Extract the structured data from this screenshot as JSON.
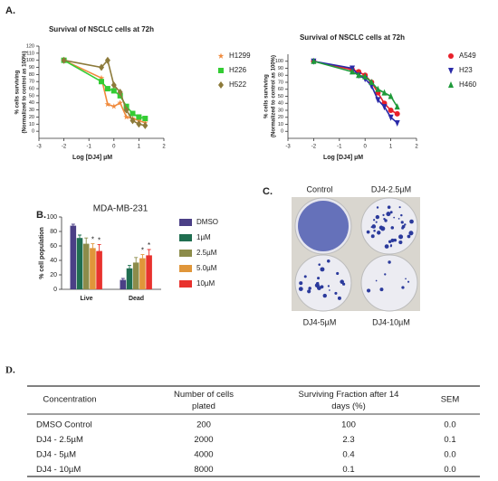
{
  "panel_labels": [
    "A.",
    "B.",
    "C.",
    "D."
  ],
  "chart_data": [
    {
      "type": "line",
      "title": "Survival of NSCLC cells at 72h",
      "ylabel": [
        "% cells surviving",
        "(Normalized to control as 100%)"
      ],
      "xlabel": "Log [DJ4] µM",
      "x": [
        -2,
        -0.5,
        -0.25,
        0,
        0.25,
        0.5,
        0.75,
        1,
        1.25
      ],
      "xlim": [
        -3,
        2
      ],
      "xticks": [
        -3,
        -2,
        -1,
        0,
        1,
        2
      ],
      "ylim": [
        -10,
        120
      ],
      "yticks": [
        0,
        10,
        20,
        30,
        40,
        50,
        60,
        70,
        80,
        90,
        100,
        110,
        120
      ],
      "series": [
        {
          "name": "H1299",
          "color": "#f08a3c",
          "marker": "star",
          "values": [
            100,
            75,
            38,
            35,
            40,
            20,
            18,
            15,
            12
          ]
        },
        {
          "name": "H226",
          "color": "#33cc33",
          "marker": "square",
          "values": [
            100,
            70,
            60,
            57,
            50,
            35,
            25,
            20,
            18
          ]
        },
        {
          "name": "H522",
          "color": "#8c7a3a",
          "marker": "diamond",
          "values": [
            100,
            90,
            100,
            65,
            55,
            30,
            15,
            10,
            8
          ]
        }
      ]
    },
    {
      "type": "line",
      "title": "Survival of NSCLC cells at 72h",
      "ylabel": [
        "% cells surviving",
        "(Normalized to control as 100%)"
      ],
      "xlabel": "Log [DJ4] µM",
      "x": [
        -2,
        -0.5,
        -0.25,
        0,
        0.25,
        0.5,
        0.75,
        1,
        1.25
      ],
      "xlim": [
        -3,
        2
      ],
      "xticks": [
        -3,
        -2,
        -1,
        0,
        1,
        2
      ],
      "ylim": [
        -10,
        110
      ],
      "yticks": [
        0,
        10,
        20,
        30,
        40,
        50,
        60,
        70,
        80,
        90,
        100
      ],
      "series": [
        {
          "name": "A549",
          "color": "#e8202a",
          "marker": "circle",
          "values": [
            100,
            88,
            85,
            80,
            70,
            55,
            40,
            30,
            25
          ]
        },
        {
          "name": "H23",
          "color": "#2a2aa8",
          "marker": "triangle-down",
          "values": [
            100,
            90,
            80,
            75,
            65,
            45,
            35,
            20,
            12
          ]
        },
        {
          "name": "H460",
          "color": "#1f9a3a",
          "marker": "triangle",
          "values": [
            100,
            85,
            80,
            78,
            70,
            60,
            55,
            50,
            35
          ]
        }
      ]
    },
    {
      "type": "bar",
      "title": "MDA-MB-231",
      "ylabel": "% cell population",
      "categories": [
        "Live",
        "Dead"
      ],
      "ylim": [
        0,
        100
      ],
      "yticks": [
        0,
        20,
        40,
        60,
        80,
        100
      ],
      "series": [
        {
          "name": "DMSO",
          "color": "#4b3f86",
          "values": [
            88,
            13
          ],
          "errors": [
            2,
            2
          ]
        },
        {
          "name": "1µM",
          "color": "#1f6e50",
          "values": [
            71,
            29
          ],
          "errors": [
            4,
            4
          ]
        },
        {
          "name": "2.5µM",
          "color": "#8c8c4a",
          "values": [
            63,
            37
          ],
          "errors": [
            8,
            7
          ]
        },
        {
          "name": "5.0µM",
          "color": "#e0963a",
          "values": [
            57,
            43
          ],
          "errors": [
            6,
            5
          ],
          "significance": [
            "*",
            "*"
          ]
        },
        {
          "name": "10µM",
          "color": "#e8322e",
          "values": [
            53,
            47
          ],
          "errors": [
            9,
            8
          ],
          "significance": [
            "*",
            "*"
          ]
        }
      ]
    }
  ],
  "image_c": {
    "labels": [
      "Control",
      "DJ4-2.5µM",
      "DJ4-5µM",
      "DJ4-10µM"
    ]
  },
  "table": {
    "header": [
      "Concentration",
      "Number of cells plated",
      "Surviving Fraction after 14 days (%)",
      "SEM"
    ],
    "rows": [
      [
        "DMSO Control",
        "200",
        "100",
        "0.0"
      ],
      [
        "DJ4 - 2.5µM",
        "2000",
        "2.3",
        "0.1"
      ],
      [
        "DJ4 - 5µM",
        "4000",
        "0.4",
        "0.0"
      ],
      [
        "DJ4 - 10µM",
        "8000",
        "0.1",
        "0.0"
      ]
    ]
  }
}
